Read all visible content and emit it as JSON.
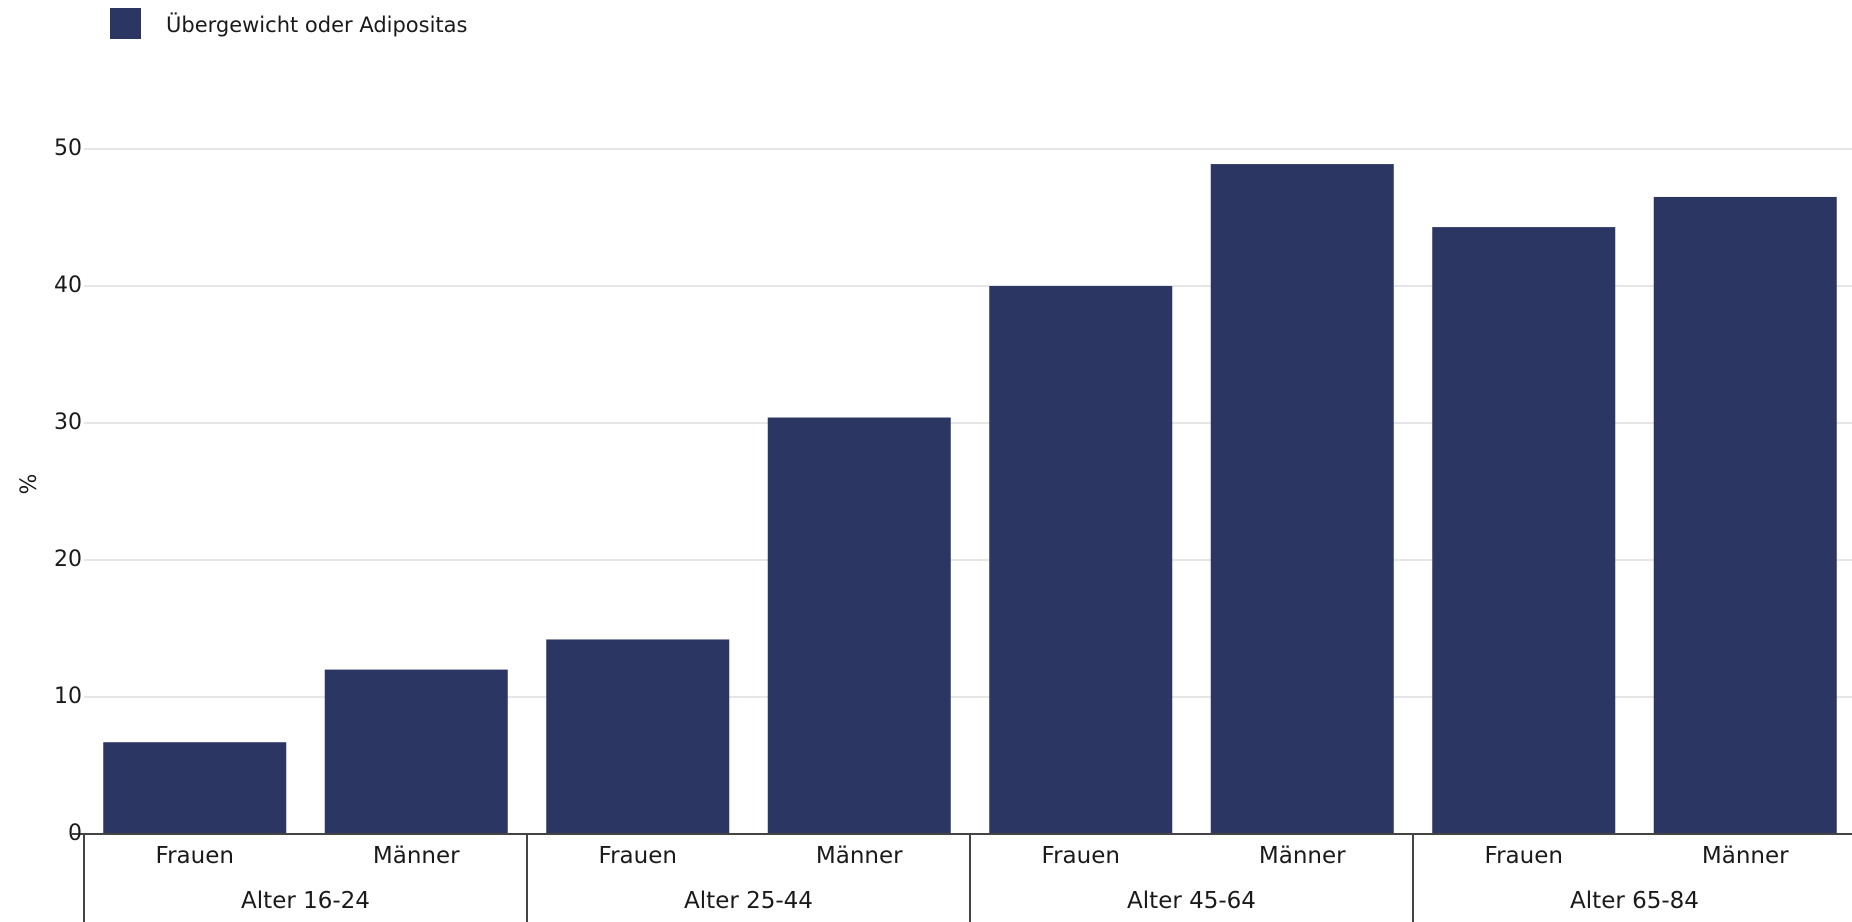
{
  "chart_data": {
    "type": "bar",
    "legend": {
      "position": "top-left",
      "entries": [
        "Übergewicht oder Adipositas"
      ]
    },
    "ylabel": "%",
    "ylim": [
      0,
      50
    ],
    "yticks": [
      "0",
      "10",
      "20",
      "30",
      "40",
      "50"
    ],
    "grid": true,
    "groups": [
      "Alter 16-24",
      "Alter 25-44",
      "Alter 45-64",
      "Alter 65-84"
    ],
    "categories": [
      "Frauen",
      "Männer",
      "Frauen",
      "Männer",
      "Frauen",
      "Männer",
      "Frauen",
      "Männer"
    ],
    "series": [
      {
        "name": "Übergewicht oder Adipositas",
        "color": "#2b3663",
        "values": [
          6.7,
          12.0,
          14.2,
          30.4,
          40.0,
          48.9,
          44.3,
          46.5
        ]
      }
    ]
  }
}
